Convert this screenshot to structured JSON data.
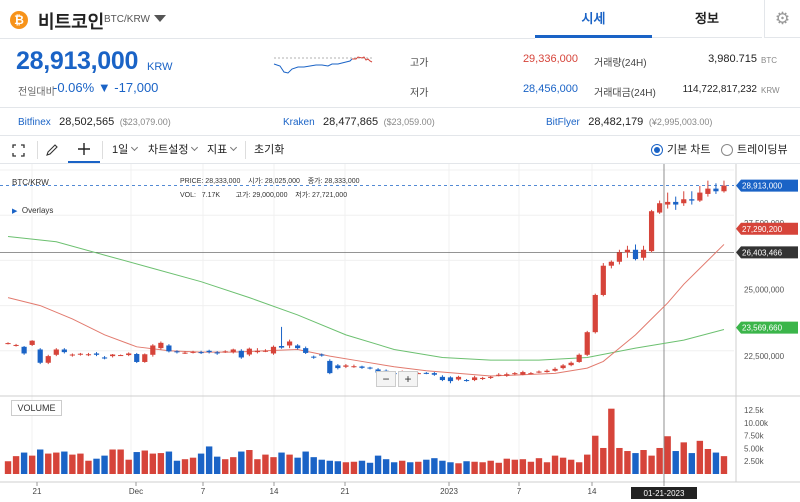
{
  "header": {
    "coin_icon": "₿",
    "coin_name": "비트코인",
    "pair": "BTC/KRW",
    "tabs": [
      "시세",
      "정보"
    ],
    "settings_icon": "gear-icon"
  },
  "summary": {
    "price": "28,913,000",
    "unit": "KRW",
    "change_label": "전일대비",
    "change_pct": "-0.06%",
    "change_amt": "▼ -17,000",
    "stats": [
      {
        "label": "고가",
        "value": "29,336,000",
        "color": "#d6443a"
      },
      {
        "label": "저가",
        "value": "28,456,000",
        "color": "#1a63c6"
      },
      {
        "label": "거래량(24H)",
        "value": "3,980.715",
        "unit": "BTC"
      },
      {
        "label": "거래대금(24H)",
        "value": "114,722,817,232",
        "unit": "KRW"
      }
    ]
  },
  "exchanges": [
    {
      "name": "Bitfinex",
      "krw": "28,502,565",
      "usd": "($23,079.00)"
    },
    {
      "name": "Kraken",
      "krw": "28,477,865",
      "usd": "($23,059.00)"
    },
    {
      "name": "BitFlyer",
      "krw": "28,482,179",
      "usd": "(¥2,995,003.00)"
    }
  ],
  "toolbar": {
    "expand_icon": "expand-icon",
    "pen_icon": "pencil-icon",
    "cross_icon": "crosshair-icon",
    "interval": "1일",
    "chart_settings": "차트설정",
    "indicator": "지표",
    "reset": "초기화",
    "view_basic": "기본 차트",
    "view_tv": "트레이딩뷰"
  },
  "chart_data": {
    "type": "candlestick",
    "symbol": "BTC/KRW",
    "legend_row1": {
      "PRICE": "28,333,000",
      "시가": "28,025,000",
      "종가": "28,333,000"
    },
    "legend_row2": {
      "VOL": "7.17K",
      "고가": "29,000,000",
      "저가": "27,721,000"
    },
    "overlays_label": "Overlays",
    "volume_label": "VOLUME",
    "price_axis": [
      "27,500,000",
      "25,000,000",
      "22,500,000"
    ],
    "volume_axis": [
      "12.5k",
      "10.00k",
      "7.50k",
      "5.00k",
      "2.50k"
    ],
    "price_tags": [
      {
        "value": "28,913,000",
        "color": "#1a63c6"
      },
      {
        "value": "27,290,200",
        "color": "#d6443a"
      },
      {
        "value": "26,403,466",
        "color": "#333333"
      },
      {
        "value": "23,569,660",
        "color": "#3bb54a"
      }
    ],
    "x_ticks": [
      "21",
      "Dec",
      "7",
      "14",
      "21",
      "2023",
      "7",
      "14",
      "21"
    ],
    "crosshair_date": "01-21-2023",
    "zoom_minus": "−",
    "zoom_plus": "+",
    "ylim": [
      21000000,
      29500000
    ],
    "candles": [
      [
        22960000,
        22990000,
        22940000,
        23020000
      ],
      [
        22900000,
        22920000,
        22860000,
        22960000
      ],
      [
        22850000,
        22600000,
        22550000,
        22880000
      ],
      [
        22920000,
        23080000,
        22880000,
        23100000
      ],
      [
        22750000,
        22250000,
        22200000,
        22800000
      ],
      [
        22250000,
        22500000,
        22200000,
        22550000
      ],
      [
        22550000,
        22750000,
        22500000,
        22800000
      ],
      [
        22750000,
        22650000,
        22600000,
        22800000
      ],
      [
        22560000,
        22560000,
        22480000,
        22600000
      ],
      [
        22570000,
        22590000,
        22520000,
        22620000
      ],
      [
        22560000,
        22570000,
        22500000,
        22620000
      ],
      [
        22600000,
        22550000,
        22500000,
        22650000
      ],
      [
        22450000,
        22410000,
        22380000,
        22500000
      ],
      [
        22500000,
        22560000,
        22450000,
        22580000
      ],
      [
        22540000,
        22540000,
        22520000,
        22560000
      ],
      [
        22540000,
        22600000,
        22500000,
        22640000
      ],
      [
        22580000,
        22280000,
        22240000,
        22620000
      ],
      [
        22280000,
        22570000,
        22250000,
        22600000
      ],
      [
        22550000,
        22900000,
        22480000,
        22950000
      ],
      [
        22800000,
        23000000,
        22750000,
        23050000
      ],
      [
        22900000,
        22680000,
        22640000,
        22950000
      ],
      [
        22680000,
        22650000,
        22600000,
        22720000
      ],
      [
        22620000,
        22630000,
        22580000,
        22680000
      ],
      [
        22640000,
        22660000,
        22600000,
        22700000
      ],
      [
        22650000,
        22620000,
        22580000,
        22700000
      ],
      [
        22700000,
        22650000,
        22600000,
        22740000
      ],
      [
        22640000,
        22600000,
        22550000,
        22690000
      ],
      [
        22660000,
        22680000,
        22620000,
        22720000
      ],
      [
        22650000,
        22750000,
        22600000,
        22780000
      ],
      [
        22700000,
        22450000,
        22400000,
        22760000
      ],
      [
        22560000,
        22780000,
        22500000,
        22820000
      ],
      [
        22650000,
        22700000,
        22600000,
        22800000
      ],
      [
        22690000,
        22700000,
        22650000,
        22760000
      ],
      [
        22600000,
        22850000,
        22550000,
        22900000
      ],
      [
        22880000,
        22820000,
        22780000,
        23600000
      ],
      [
        22900000,
        23050000,
        22800000,
        23120000
      ],
      [
        22900000,
        22800000,
        22750000,
        22950000
      ],
      [
        22800000,
        22620000,
        22580000,
        22860000
      ],
      [
        22480000,
        22450000,
        22400000,
        22520000
      ],
      [
        22560000,
        22520000,
        22480000,
        22600000
      ],
      [
        22320000,
        21860000,
        21820000,
        22380000
      ],
      [
        22150000,
        22050000,
        22000000,
        22200000
      ],
      [
        22100000,
        22150000,
        22050000,
        22200000
      ],
      [
        22110000,
        22120000,
        22060000,
        22180000
      ],
      [
        22110000,
        22060000,
        22020000,
        22140000
      ],
      [
        22070000,
        22040000,
        22000000,
        22100000
      ],
      [
        22000000,
        21880000,
        21840000,
        22050000
      ],
      [
        21950000,
        21900000,
        21860000,
        22000000
      ],
      [
        21860000,
        21840000,
        21800000,
        21900000
      ],
      [
        21910000,
        21920000,
        21850000,
        21960000
      ],
      [
        21820000,
        21800000,
        21780000,
        21860000
      ],
      [
        21860000,
        21860000,
        21840000,
        21880000
      ],
      [
        21870000,
        21860000,
        21820000,
        21900000
      ],
      [
        21860000,
        21800000,
        21760000,
        21900000
      ],
      [
        21720000,
        21600000,
        21560000,
        21780000
      ],
      [
        21700000,
        21560000,
        21480000,
        21740000
      ],
      [
        21620000,
        21720000,
        21580000,
        21760000
      ],
      [
        21600000,
        21580000,
        21540000,
        21640000
      ],
      [
        21600000,
        21700000,
        21560000,
        21760000
      ],
      [
        21640000,
        21680000,
        21600000,
        21720000
      ],
      [
        21680000,
        21720000,
        21640000,
        21760000
      ],
      [
        21780000,
        21800000,
        21740000,
        21860000
      ],
      [
        21760000,
        21820000,
        21720000,
        21880000
      ],
      [
        21820000,
        21860000,
        21780000,
        21900000
      ],
      [
        21800000,
        21900000,
        21780000,
        21950000
      ],
      [
        21840000,
        21860000,
        21820000,
        21900000
      ],
      [
        21880000,
        21920000,
        21860000,
        21960000
      ],
      [
        21900000,
        21950000,
        21880000,
        22000000
      ],
      [
        21950000,
        22020000,
        21920000,
        22080000
      ],
      [
        22050000,
        22150000,
        22000000,
        22200000
      ],
      [
        22160000,
        22250000,
        22120000,
        22300000
      ],
      [
        22280000,
        22550000,
        22250000,
        22600000
      ],
      [
        22550000,
        23400000,
        22500000,
        23450000
      ],
      [
        23400000,
        24800000,
        23350000,
        24850000
      ],
      [
        24800000,
        25900000,
        24750000,
        26000000
      ],
      [
        25900000,
        26050000,
        25800000,
        26100000
      ],
      [
        26050000,
        26400000,
        25950000,
        26500000
      ],
      [
        26400000,
        26500000,
        26200000,
        26650000
      ],
      [
        26500000,
        26150000,
        26100000,
        26700000
      ],
      [
        26200000,
        26500000,
        26100000,
        26650000
      ],
      [
        26450000,
        27950000,
        26400000,
        28000000
      ],
      [
        27900000,
        28250000,
        27850000,
        28350000
      ],
      [
        28200000,
        28300000,
        28050000,
        28650000
      ],
      [
        28300000,
        28200000,
        28000000,
        28500000
      ],
      [
        28250000,
        28400000,
        28150000,
        28700000
      ],
      [
        28400000,
        28350000,
        28200000,
        28700000
      ],
      [
        28350000,
        28650000,
        28300000,
        28900000
      ],
      [
        28600000,
        28800000,
        28500000,
        29100000
      ],
      [
        28800000,
        28700000,
        28600000,
        29000000
      ],
      [
        28700000,
        28913000,
        28650000,
        29100000
      ]
    ],
    "volumes": [
      2.5,
      3.5,
      4.2,
      3.6,
      4.8,
      4.0,
      4.2,
      4.4,
      3.8,
      4.0,
      2.6,
      3.0,
      3.6,
      4.8,
      4.8,
      2.8,
      4.3,
      4.6,
      4.0,
      4.1,
      4.4,
      2.6,
      2.9,
      3.2,
      4.0,
      5.4,
      3.4,
      2.9,
      3.3,
      4.4,
      4.7,
      2.9,
      3.8,
      3.3,
      4.2,
      3.8,
      3.2,
      4.4,
      3.3,
      2.8,
      2.6,
      2.5,
      2.3,
      2.4,
      2.6,
      2.2,
      3.6,
      2.9,
      2.3,
      2.6,
      2.3,
      2.4,
      2.8,
      3.1,
      2.6,
      2.3,
      2.1,
      2.5,
      2.4,
      2.3,
      2.6,
      2.2,
      3.0,
      2.8,
      2.9,
      2.4,
      3.1,
      2.3,
      3.6,
      3.2,
      2.8,
      2.3,
      3.8,
      7.5,
      5.1,
      12.8,
      5.1,
      4.5,
      4.1,
      4.7,
      3.6,
      5.1,
      7.4,
      4.5,
      6.2,
      4.1,
      6.5,
      4.9,
      4.2,
      3.5
    ],
    "ma_short": [
      [
        0,
        24700000
      ],
      [
        4,
        24400000
      ],
      [
        8,
        23900000
      ],
      [
        12,
        23300000
      ],
      [
        16,
        22850000
      ],
      [
        20,
        22700000
      ],
      [
        24,
        22650000
      ],
      [
        28,
        22650000
      ],
      [
        32,
        22700000
      ],
      [
        36,
        22750000
      ],
      [
        40,
        22500000
      ],
      [
        44,
        22300000
      ],
      [
        48,
        22100000
      ],
      [
        52,
        21950000
      ],
      [
        56,
        21850000
      ],
      [
        60,
        21750000
      ],
      [
        64,
        21800000
      ],
      [
        68,
        21850000
      ],
      [
        72,
        22050000
      ],
      [
        74,
        22300000
      ],
      [
        76,
        22800000
      ],
      [
        78,
        23300000
      ],
      [
        80,
        23900000
      ],
      [
        82,
        24500000
      ],
      [
        84,
        25200000
      ],
      [
        86,
        25800000
      ],
      [
        89,
        26700000
      ]
    ],
    "ma_long": [
      [
        0,
        27000000
      ],
      [
        6,
        26800000
      ],
      [
        12,
        26300000
      ],
      [
        18,
        25800000
      ],
      [
        24,
        25300000
      ],
      [
        30,
        24700000
      ],
      [
        36,
        24050000
      ],
      [
        42,
        23300000
      ],
      [
        48,
        22750000
      ],
      [
        54,
        22450000
      ],
      [
        60,
        22350000
      ],
      [
        66,
        22350000
      ],
      [
        72,
        22450000
      ],
      [
        78,
        22800000
      ],
      [
        84,
        23100000
      ],
      [
        89,
        23500000
      ]
    ]
  }
}
